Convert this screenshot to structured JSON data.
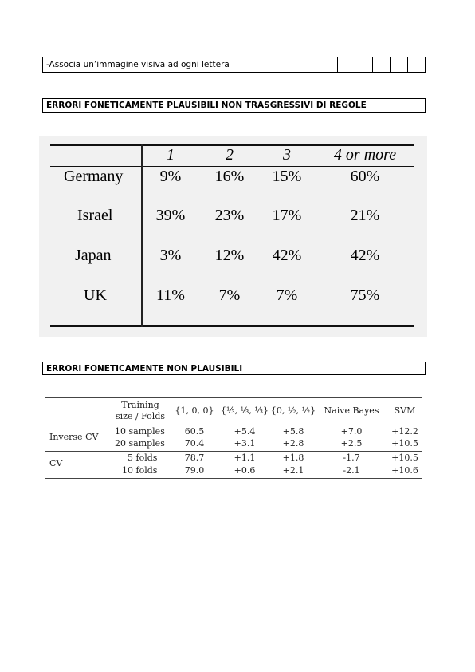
{
  "row1": {
    "text": "-Associa un’immagine visiva ad ogni lettera",
    "box_count": 5
  },
  "heading1": "ERRORI FONETICAMENTE PLAUSIBILI NON TRASGRESSIVI DI REGOLE",
  "heading2": "ERRORI FONETICAMENTE NON PLAUSIBILI",
  "country_table": {
    "columns": [
      "1",
      "2",
      "3",
      "4 or more"
    ],
    "rows": [
      {
        "country": "Germany",
        "values": [
          "9%",
          "16%",
          "15%",
          "60%"
        ]
      },
      {
        "country": "Israel",
        "values": [
          "39%",
          "23%",
          "17%",
          "21%"
        ]
      },
      {
        "country": "Japan",
        "values": [
          "3%",
          "12%",
          "42%",
          "42%"
        ]
      },
      {
        "country": "UK",
        "values": [
          "11%",
          "7%",
          "7%",
          "75%"
        ]
      }
    ]
  },
  "results_table": {
    "header": {
      "training_l1": "Training",
      "training_l2": "size / Folds",
      "c1": "{1, 0, 0}",
      "c2": "{⅓, ⅓, ⅓}",
      "c3": "{0, ½, ½}",
      "c4": "Naive Bayes",
      "c5": "SVM"
    },
    "groups": [
      {
        "name": "Inverse CV",
        "rows": [
          {
            "size": "10 samples",
            "values": [
              "60.5",
              "+5.4",
              "+5.8",
              "+7.0",
              "+12.2"
            ]
          },
          {
            "size": "20 samples",
            "values": [
              "70.4",
              "+3.1",
              "+2.8",
              "+2.5",
              "+10.5"
            ]
          }
        ]
      },
      {
        "name": "CV",
        "rows": [
          {
            "size": "5 folds",
            "values": [
              "78.7",
              "+1.1",
              "+1.8",
              "-1.7",
              "+10.5"
            ]
          },
          {
            "size": "10 folds",
            "values": [
              "79.0",
              "+0.6",
              "+2.1",
              "-2.1",
              "+10.6"
            ]
          }
        ]
      }
    ]
  }
}
